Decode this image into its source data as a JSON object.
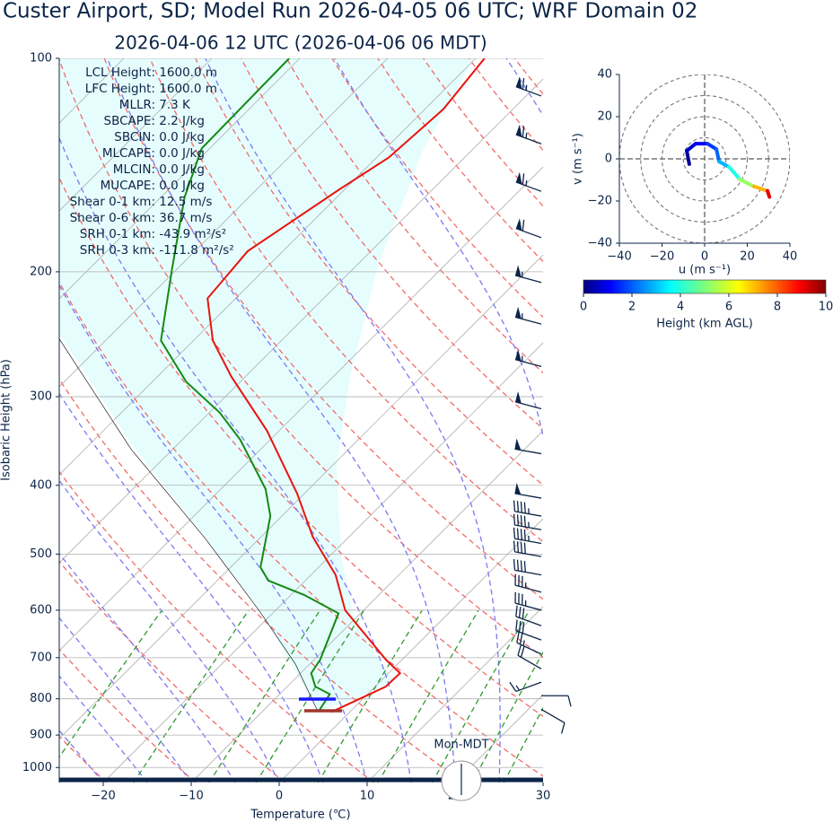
{
  "chart_data": [
    {
      "type": "skewt",
      "title": "Custer Airport, SD; Model Run 2026-04-05 06 UTC; WRF Domain 02",
      "subtitle": "2026-04-06 12 UTC  (2026-04-06 06 MDT)",
      "xlabel": "Temperature (℃)",
      "ylabel": "Isobaric Height (hPa)",
      "xlim": [
        -25,
        30
      ],
      "ylim": [
        1050,
        100
      ],
      "log_y": true,
      "grid": true,
      "xticks": [
        {
          "value": -20,
          "label": "−20"
        },
        {
          "value": -10,
          "label": "−10"
        },
        0,
        10,
        20,
        30
      ],
      "yticks": [
        100,
        200,
        300,
        400,
        500,
        600,
        700,
        800,
        900,
        1000
      ],
      "annotations": [
        "LCL Height: 1600.0 m",
        "LFC Height: 1600.0 m",
        "MLLR: 7.3 K",
        "SBCAPE: 2.2 J/kg",
        "SBCIN: 0.0 J/kg",
        "MLCAPE: 0.0 J/kg",
        "MLCIN: 0.0 J/kg",
        "MUCAPE: 0.0 J/kg",
        "Shear 0-1 km: 12.5 m/s",
        "Shear 0-6 km: 36.7 m/s",
        "SRH 0-1 km: -43.9 m²/s²",
        "SRH 0-3 km: -111.8 m²/s²"
      ],
      "time_label": "Mon-MDT",
      "series": [
        {
          "color": "#e8150e",
          "pressure": [
            835,
            769,
            736,
            705,
            600,
            535,
            473,
            411,
            335,
            281,
            250,
            218,
            187,
            153,
            138,
            118,
            100
          ],
          "values": [
            -2.1,
            1.2,
            1.3,
            -1.8,
            -12.1,
            -17.2,
            -24.1,
            -30.8,
            -41.4,
            -51.6,
            -57.8,
            -63.2,
            -64.0,
            -60.6,
            -58.6,
            -57.9,
            -59.0
          ]
        },
        {
          "color": "#138a13",
          "pressure": [
            835,
            788,
            769,
            736,
            705,
            606,
            571,
            545,
            522,
            442,
            405,
            345,
            316,
            286,
            250,
            198,
            157,
            134,
            100
          ],
          "values": [
            -3.6,
            -4.3,
            -6.8,
            -8.8,
            -9.3,
            -12.5,
            -18.5,
            -24.2,
            -26.6,
            -31.3,
            -34.9,
            -43.4,
            -48.8,
            -56.1,
            -63.7,
            -70.6,
            -77.3,
            -80.9,
            -81.2
          ]
        },
        {
          "color": "#222222",
          "pressure": [
            835,
            715,
            600,
            475,
            356,
            245
          ],
          "values": [
            -3.6,
            -11.6,
            -21.9,
            -36.2,
            -54.7,
            -76.3
          ]
        }
      ],
      "wind": {
        "color": "#0b2447",
        "pressure": [
          113,
          132,
          154,
          179,
          207,
          237,
          272,
          312,
          361,
          417,
          442,
          462,
          483,
          504,
          535,
          566,
          600,
          631,
          661,
          692,
          726,
          758,
          792,
          828
        ],
        "speed": [
          65,
          65,
          65,
          60,
          55,
          55,
          55,
          50,
          50,
          50,
          45,
          45,
          45,
          40,
          40,
          35,
          35,
          30,
          30,
          25,
          20,
          15,
          10,
          10
        ],
        "direction": [
          290,
          290,
          290,
          290,
          285,
          285,
          285,
          285,
          280,
          280,
          280,
          280,
          280,
          280,
          280,
          285,
          285,
          290,
          290,
          295,
          300,
          250,
          90,
          120
        ]
      }
    },
    {
      "type": "hodograph",
      "xlabel": "u (m s⁻¹)",
      "ylabel": "v (m s⁻¹)",
      "xlim": [
        -40,
        40
      ],
      "ylim": [
        -40,
        40
      ],
      "xticks": [
        {
          "value": -40,
          "label": "−40"
        },
        {
          "value": -20,
          "label": "−20"
        },
        0,
        20,
        40
      ],
      "yticks": [
        {
          "value": -40,
          "label": "−40"
        },
        {
          "value": -20,
          "label": "−20"
        },
        0,
        20,
        40
      ],
      "rings": [
        10,
        20,
        30,
        40
      ],
      "u": [
        -7.2,
        -8.4,
        -4.2,
        1.3,
        5.5,
        6.8,
        11.4,
        16.5,
        23.2,
        29.5,
        30.4
      ],
      "v": [
        -2.5,
        3.8,
        7.2,
        7.2,
        4.6,
        -1.3,
        -3.8,
        -9.7,
        -13.1,
        -15.2,
        -18.1
      ],
      "height": [
        0,
        0.5,
        1,
        1.5,
        2,
        2.5,
        3.5,
        4.5,
        6,
        8,
        10
      ],
      "colorbar": {
        "label": "Height (km AGL)",
        "lim": [
          0,
          10
        ],
        "ticks": [
          0,
          2,
          4,
          6,
          8,
          10
        ]
      }
    }
  ]
}
